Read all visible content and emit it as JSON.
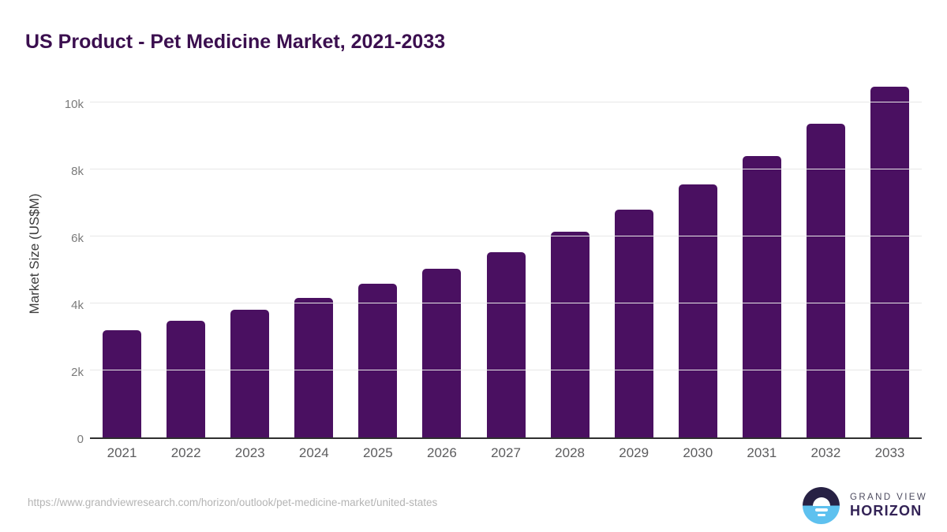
{
  "page": {
    "title": "US Product - Pet Medicine Market, 2021-2033",
    "source_url": "https://www.grandviewresearch.com/horizon/outlook/pet-medicine-market/united-states"
  },
  "logo": {
    "top": "GRAND VIEW",
    "bottom": "HORIZON"
  },
  "chart_data": {
    "type": "bar",
    "title": "US Product - Pet Medicine Market, 2021-2033",
    "xlabel": "",
    "ylabel": "Market Size (US$M)",
    "categories": [
      "2021",
      "2022",
      "2023",
      "2024",
      "2025",
      "2026",
      "2027",
      "2028",
      "2029",
      "2030",
      "2031",
      "2032",
      "2033"
    ],
    "values": [
      3210,
      3480,
      3820,
      4160,
      4580,
      5030,
      5540,
      6130,
      6790,
      7550,
      8390,
      9370,
      10470
    ],
    "ylim": [
      0,
      10500
    ],
    "yticks": [
      0,
      2000,
      4000,
      6000,
      8000,
      10000
    ],
    "ytick_labels": [
      "0",
      "2k",
      "4k",
      "6k",
      "8k",
      "10k"
    ],
    "grid": true,
    "legend_position": "none",
    "bar_color": "#4A1061"
  },
  "colors": {
    "title": "#3B0F4F",
    "bar": "#4A1061",
    "gridline": "#E7E7E7",
    "axis_line": "#2F2F2F",
    "tick_label": "#7A7A7A",
    "x_label": "#5C5C5E",
    "y_axis_title": "#3C3C3C",
    "source_url": "#B4B4B4",
    "logo_navy": "#272144",
    "logo_blue": "#5EC1EF",
    "logo_text_top": "#4C4A5E",
    "logo_text_bottom": "#332356"
  }
}
